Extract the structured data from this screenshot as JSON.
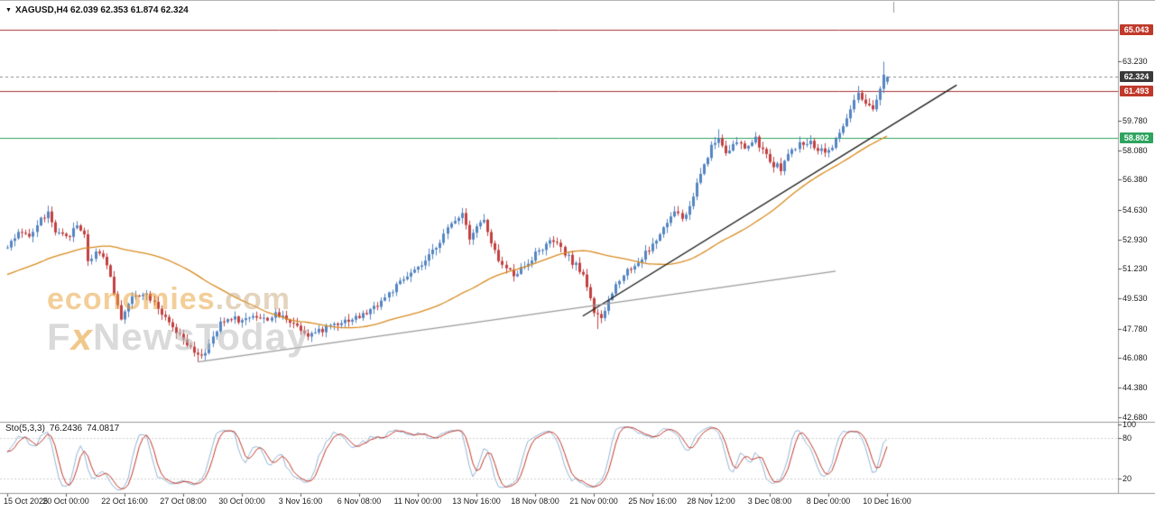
{
  "window": {
    "dropdown_icon": "▼",
    "symbol_text": "XAGUSD,H4 62.039 62.353 61.874 62.324"
  },
  "watermark": {
    "brand": "economies",
    "brand_suffix": ".com",
    "news_prefix": "F",
    "news_x": "x",
    "news_suffix": "NewsToday"
  },
  "chart_data": {
    "type": "candlestick",
    "symbol": "XAGUSD",
    "timeframe": "H4",
    "current_ohlc": {
      "open": 62.039,
      "high": 62.353,
      "low": 61.874,
      "close": 62.324
    },
    "y_axis": {
      "price_top": 66.5,
      "price_bottom": 42.45,
      "ticks": [
        "63.230",
        "59.780",
        "58.080",
        "56.380",
        "54.630",
        "52.930",
        "51.230",
        "49.530",
        "47.780",
        "46.080",
        "44.380",
        "42.680"
      ]
    },
    "x_axis": {
      "bars_per_label": 16,
      "labels": [
        "15 Oct 2025",
        "20 Oct 00:00",
        "22 Oct 16:00",
        "27 Oct 08:00",
        "30 Oct 00:00",
        "3 Nov 16:00",
        "6 Nov 08:00",
        "11 Nov 00:00",
        "13 Nov 16:00",
        "18 Nov 08:00",
        "21 Nov 00:00",
        "25 Nov 16:00",
        "28 Nov 12:00",
        "3 Dec 08:00",
        "8 Dec 00:00",
        "10 Dec 16:00"
      ]
    },
    "levels": [
      {
        "price": 65.043,
        "label": "65.043",
        "color": "#a83232",
        "tag_bg": "#c0392b",
        "tag_fg": "#ffffff",
        "style": "solid",
        "name": "resistance-level"
      },
      {
        "price": 62.324,
        "label": "62.324",
        "color": "#888888",
        "tag_bg": "#3a3a3a",
        "tag_fg": "#ffffff",
        "style": "dashed",
        "name": "current-price"
      },
      {
        "price": 61.493,
        "label": "61.493",
        "color": "#a83232",
        "tag_bg": "#c0392b",
        "tag_fg": "#ffffff",
        "style": "solid",
        "name": "pivot-level"
      },
      {
        "price": 58.802,
        "label": "58.802",
        "color": "#2ea45f",
        "tag_bg": "#2ea45f",
        "tag_fg": "#ffffff",
        "style": "solid",
        "name": "support-level"
      }
    ],
    "trendlines": [
      {
        "from_bar": 157,
        "from_price": 48.5,
        "to_bar": 259,
        "to_price": 61.85,
        "color": "#1c1c1c",
        "width": 1.4,
        "name": "steep-uptrend-line"
      },
      {
        "from_bar": 52,
        "from_price": 45.85,
        "to_bar": 226,
        "to_price": 51.1,
        "color": "#9b9b9b",
        "width": 1.2,
        "name": "shallow-uptrend-line"
      }
    ],
    "moving_average": {
      "period": 50,
      "color": "#d88a1f"
    },
    "candles": {
      "up_color": "#5585c2",
      "down_color": "#c24040",
      "count": 241,
      "seed": 42,
      "noise": 0.18,
      "pre_path": [
        [
          -55,
          48.8
        ],
        [
          -40,
          49.8
        ],
        [
          -25,
          50.9
        ],
        [
          -12,
          51.9
        ]
      ],
      "close_path": [
        [
          0,
          52.6
        ],
        [
          3,
          53.25
        ],
        [
          6,
          53.05
        ],
        [
          9,
          54.1
        ],
        [
          11,
          54.45
        ],
        [
          13,
          53.3
        ],
        [
          16,
          53.0
        ],
        [
          19,
          53.75
        ],
        [
          21,
          53.3
        ],
        [
          22,
          51.6
        ],
        [
          24,
          52.25
        ],
        [
          26,
          52.05
        ],
        [
          28,
          50.8
        ],
        [
          30,
          49.0
        ],
        [
          31,
          48.45
        ],
        [
          34,
          49.55
        ],
        [
          37,
          49.9
        ],
        [
          40,
          49.4
        ],
        [
          43,
          48.3
        ],
        [
          46,
          47.5
        ],
        [
          48,
          47.1
        ],
        [
          50,
          46.6
        ],
        [
          52,
          46.15
        ],
        [
          54,
          46.45
        ],
        [
          56,
          47.2
        ],
        [
          58,
          48.05
        ],
        [
          61,
          48.45
        ],
        [
          64,
          48.2
        ],
        [
          67,
          48.6
        ],
        [
          70,
          48.3
        ],
        [
          73,
          48.55
        ],
        [
          76,
          48.4
        ],
        [
          79,
          47.95
        ],
        [
          82,
          47.45
        ],
        [
          85,
          47.6
        ],
        [
          88,
          48.0
        ],
        [
          91,
          48.2
        ],
        [
          94,
          48.35
        ],
        [
          97,
          48.55
        ],
        [
          100,
          49.0
        ],
        [
          103,
          49.6
        ],
        [
          106,
          50.2
        ],
        [
          109,
          50.8
        ],
        [
          112,
          51.2
        ],
        [
          115,
          51.9
        ],
        [
          118,
          52.9
        ],
        [
          121,
          53.8
        ],
        [
          123,
          54.3
        ],
        [
          124,
          54.5
        ],
        [
          126,
          53.1
        ],
        [
          128,
          53.7
        ],
        [
          130,
          54.05
        ],
        [
          132,
          52.6
        ],
        [
          135,
          51.4
        ],
        [
          138,
          50.95
        ],
        [
          141,
          51.4
        ],
        [
          144,
          52.1
        ],
        [
          147,
          52.6
        ],
        [
          149,
          52.85
        ],
        [
          152,
          52.1
        ],
        [
          155,
          51.4
        ],
        [
          157,
          50.9
        ],
        [
          159,
          49.6
        ],
        [
          160,
          48.7
        ],
        [
          162,
          48.25
        ],
        [
          164,
          49.4
        ],
        [
          167,
          50.7
        ],
        [
          169,
          51.15
        ],
        [
          172,
          51.6
        ],
        [
          174,
          52.15
        ],
        [
          176,
          52.6
        ],
        [
          179,
          53.5
        ],
        [
          181,
          54.25
        ],
        [
          183,
          54.55
        ],
        [
          184,
          54.05
        ],
        [
          186,
          54.8
        ],
        [
          188,
          56.2
        ],
        [
          190,
          57.3
        ],
        [
          192,
          58.3
        ],
        [
          194,
          58.8
        ],
        [
          196,
          58.05
        ],
        [
          199,
          58.5
        ],
        [
          201,
          58.2
        ],
        [
          204,
          58.7
        ],
        [
          206,
          58.05
        ],
        [
          208,
          57.4
        ],
        [
          211,
          57.05
        ],
        [
          213,
          57.8
        ],
        [
          216,
          58.4
        ],
        [
          218,
          58.6
        ],
        [
          221,
          58.2
        ],
        [
          224,
          58.05
        ],
        [
          226,
          58.6
        ],
        [
          228,
          59.5
        ],
        [
          230,
          60.4
        ],
        [
          232,
          61.3
        ],
        [
          234,
          60.6
        ],
        [
          236,
          60.45
        ],
        [
          238,
          61.55
        ],
        [
          239,
          62.6
        ],
        [
          240,
          62.324
        ]
      ],
      "spikes": [
        {
          "bar": 11,
          "high": 54.68
        },
        {
          "bar": 52,
          "low": 45.88
        },
        {
          "bar": 83,
          "low": 47.05
        },
        {
          "bar": 124,
          "high": 54.75
        },
        {
          "bar": 138,
          "low": 50.5
        },
        {
          "bar": 161,
          "low": 47.75
        },
        {
          "bar": 194,
          "high": 59.3
        },
        {
          "bar": 232,
          "high": 61.8
        },
        {
          "bar": 239,
          "high": 63.2
        }
      ]
    },
    "stochastic": {
      "label": "Sto(5,3,3)",
      "main_value": "76.2436",
      "signal_value": "74.0817",
      "k": 5,
      "d": 3,
      "slowing": 3,
      "scale_labels": [
        "100",
        "80",
        "20"
      ],
      "main_color": "#92b4d6",
      "signal_color": "#c0392b"
    }
  }
}
